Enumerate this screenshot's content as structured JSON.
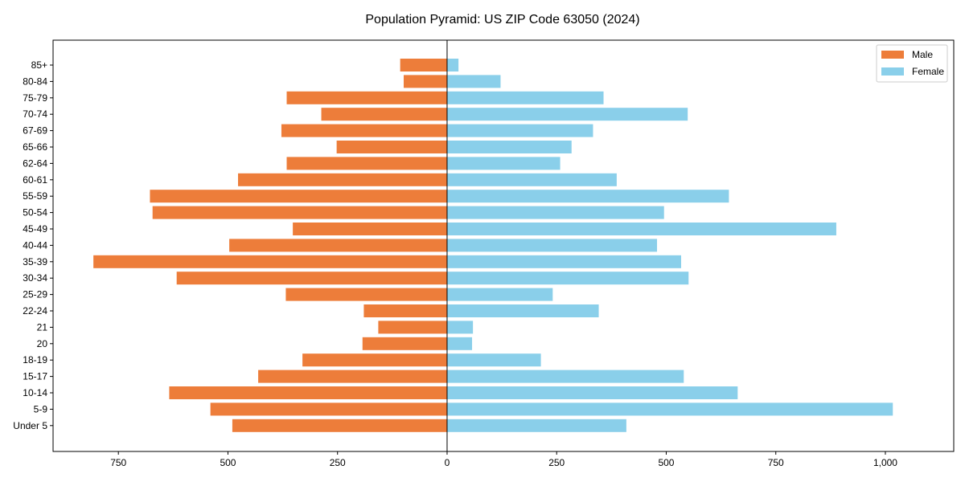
{
  "chart_data": {
    "type": "bar",
    "orientation": "horizontal",
    "title": "Population Pyramid: US ZIP Code 63050 (2024)",
    "xlabel": "",
    "ylabel": "",
    "xlim": [
      -899,
      1156
    ],
    "xticks": [
      -750,
      -500,
      -250,
      0,
      250,
      500,
      750,
      1000
    ],
    "xtick_labels": [
      "750",
      "500",
      "250",
      "0",
      "250",
      "500",
      "750",
      "1,000"
    ],
    "grid": false,
    "legend_position": "top-right",
    "categories": [
      "85+",
      "80-84",
      "75-79",
      "70-74",
      "67-69",
      "65-66",
      "62-64",
      "60-61",
      "55-59",
      "50-54",
      "45-49",
      "40-44",
      "35-39",
      "30-34",
      "25-29",
      "22-24",
      "21",
      "20",
      "18-19",
      "15-17",
      "10-14",
      "5-9",
      "Under 5"
    ],
    "series": [
      {
        "name": "Male",
        "color": "#ED7D3A",
        "values": [
          107,
          99,
          366,
          287,
          378,
          252,
          366,
          477,
          678,
          672,
          352,
          497,
          807,
          617,
          368,
          190,
          157,
          193,
          330,
          431,
          634,
          540,
          490
        ]
      },
      {
        "name": "Female",
        "color": "#8ACFEA",
        "values": [
          26,
          122,
          357,
          549,
          333,
          284,
          258,
          387,
          643,
          495,
          888,
          479,
          534,
          551,
          241,
          346,
          59,
          57,
          214,
          540,
          663,
          1017,
          409
        ]
      }
    ]
  }
}
